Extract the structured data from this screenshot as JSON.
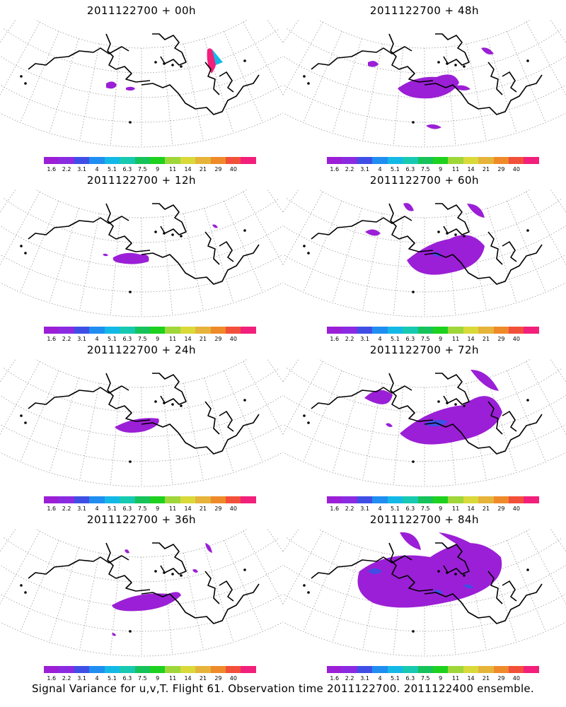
{
  "panels": [
    {
      "title": "2011122700 + 00h",
      "lead": "00h"
    },
    {
      "title": "2011122700 + 48h",
      "lead": "48h"
    },
    {
      "title": "2011122700 + 12h",
      "lead": "12h"
    },
    {
      "title": "2011122700 + 60h",
      "lead": "60h"
    },
    {
      "title": "2011122700 + 24h",
      "lead": "24h"
    },
    {
      "title": "2011122700 + 72h",
      "lead": "72h"
    },
    {
      "title": "2011122700 + 36h",
      "lead": "36h"
    },
    {
      "title": "2011122700 + 84h",
      "lead": "84h"
    }
  ],
  "colorbar": {
    "levels": [
      "1.6",
      "2.2",
      "3.1",
      "4",
      "5.1",
      "6.3",
      "7.5",
      "9",
      "11",
      "14",
      "21",
      "29",
      "40"
    ],
    "colors": [
      "#9b1fd6",
      "#8a2be2",
      "#3f4fe6",
      "#1f8ef0",
      "#14b8e6",
      "#17c9b0",
      "#16c25a",
      "#1ed11e",
      "#9fd63a",
      "#d9d93a",
      "#e6b43a",
      "#ef8a2a",
      "#f2503a",
      "#f2207a"
    ]
  },
  "footer": "Signal Variance for u,v,T. Flight 61. Observation time 2011122700. 2011122400 ensemble."
}
